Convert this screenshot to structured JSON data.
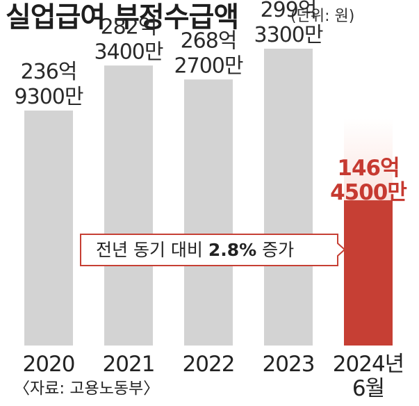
{
  "title": "실업급여 부정수급액",
  "unit": "(단위: 원)",
  "source": "〈자료: 고용노동부〉",
  "callout": {
    "prefix": "전년 동기 대비 ",
    "value": "2.8%",
    "suffix": " 증가"
  },
  "colors": {
    "bar": "#d3d3d3",
    "highlight": "#c63f34",
    "highlight_fade_top": "#fbe5e0",
    "highlight_text": "#c63a31",
    "callout_border": "#c63f34"
  },
  "chart_data": {
    "type": "bar",
    "title": "실업급여 부정수급액",
    "unit": "원",
    "categories": [
      "2020",
      "2021",
      "2022",
      "2023",
      "2024년 6월"
    ],
    "values": [
      23693000000,
      28234000000,
      26827000000,
      29933000000,
      14645000000
    ],
    "value_labels": [
      [
        "236억",
        "9300만"
      ],
      [
        "282억",
        "3400만"
      ],
      [
        "268억",
        "2700만"
      ],
      [
        "299억",
        "3300만"
      ],
      [
        "146억",
        "4500만"
      ]
    ],
    "tick_labels": [
      [
        "2020"
      ],
      [
        "2021"
      ],
      [
        "2022"
      ],
      [
        "2023"
      ],
      [
        "2024년",
        "6월"
      ]
    ],
    "highlight_index": 4,
    "ylim": [
      0,
      34000000000
    ],
    "grid": false,
    "legend": "none"
  }
}
